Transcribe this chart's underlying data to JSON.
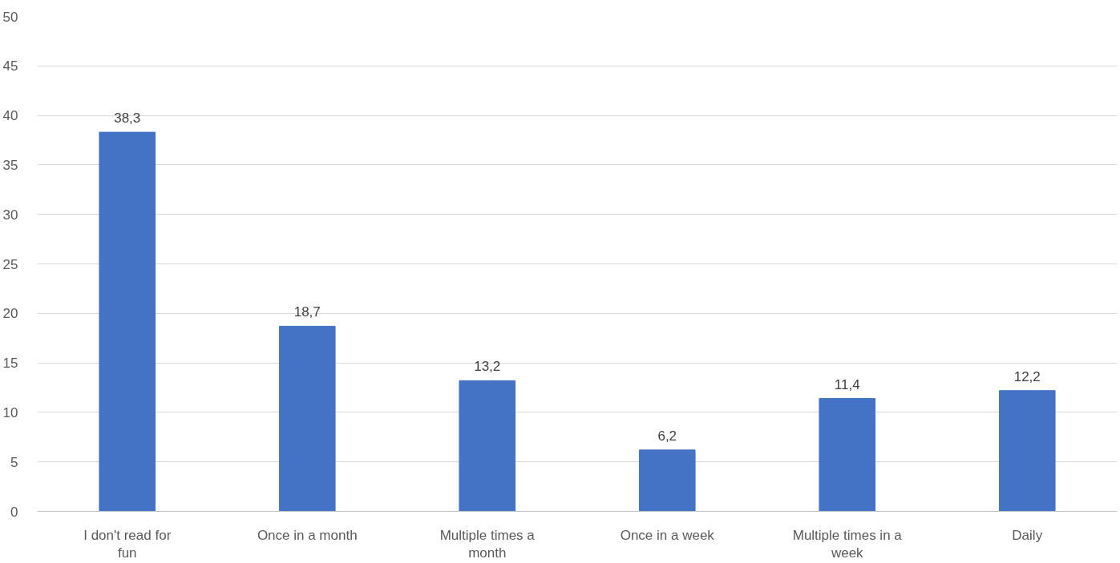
{
  "chart_data": {
    "type": "bar",
    "categories": [
      "I don't read for fun",
      "Once in a month",
      "Multiple times a month",
      "Once in a week",
      "Multiple times in a week",
      "Daily"
    ],
    "values": [
      38.3,
      18.7,
      13.2,
      6.2,
      11.4,
      12.2
    ],
    "value_labels": [
      "38,3",
      "18,7",
      "13,2",
      "6,2",
      "11,4",
      "12,2"
    ],
    "color": "#4472c4",
    "ylim": [
      0,
      50
    ],
    "yticks": [
      0,
      5,
      10,
      15,
      20,
      25,
      30,
      35,
      40,
      45,
      50
    ],
    "grid": "y"
  }
}
